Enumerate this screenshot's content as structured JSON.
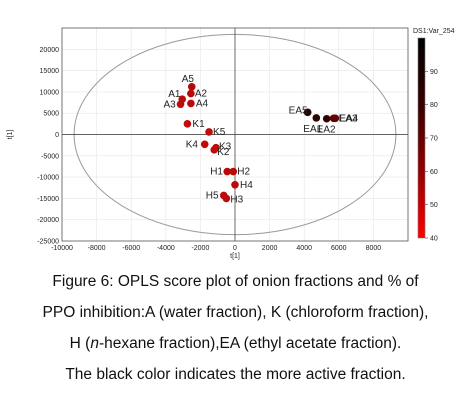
{
  "chart_data": {
    "type": "scatter",
    "title": "",
    "xlabel": "t[1]",
    "ylabel": "t[1]",
    "xlim": [
      -10000,
      10000
    ],
    "ylim": [
      -25000,
      25000
    ],
    "x_ticks": [
      "-10000",
      "-8000",
      "-6000",
      "-4000",
      "-2000",
      "0",
      "2000",
      "4000",
      "6000",
      "8000"
    ],
    "y_ticks": [
      "20000",
      "15000",
      "10000",
      "5000",
      "0",
      "-5000",
      "-10000",
      "-15000",
      "-20000",
      "-25000"
    ],
    "grid": true,
    "confidence_ellipse": true,
    "colorbar": {
      "title": "DS1:Var_254",
      "min": 40,
      "max": 100,
      "ticks": [
        "90",
        "80",
        "70",
        "60",
        "50",
        "40"
      ],
      "low_color": "#ff0000",
      "high_color": "#000000"
    },
    "points": [
      {
        "label": "A5",
        "x": -2500,
        "y": 11200,
        "value": 62
      },
      {
        "label": "A1",
        "x": -3050,
        "y": 8300,
        "value": 58
      },
      {
        "label": "A2",
        "x": -2550,
        "y": 9600,
        "value": 60
      },
      {
        "label": "A3",
        "x": -3150,
        "y": 7100,
        "value": 57
      },
      {
        "label": "A4",
        "x": -2550,
        "y": 7300,
        "value": 58
      },
      {
        "label": "K1",
        "x": -2750,
        "y": 2500,
        "value": 56
      },
      {
        "label": "K5",
        "x": -1500,
        "y": 600,
        "value": 56
      },
      {
        "label": "K4",
        "x": -1750,
        "y": -2300,
        "value": 57
      },
      {
        "label": "K2",
        "x": -1200,
        "y": -3600,
        "value": 57
      },
      {
        "label": "K3",
        "x": -1100,
        "y": -3100,
        "value": 56
      },
      {
        "label": "H1",
        "x": -450,
        "y": -8700,
        "value": 60
      },
      {
        "label": "H2",
        "x": -100,
        "y": -8700,
        "value": 60
      },
      {
        "label": "H4",
        "x": 0,
        "y": -11800,
        "value": 60
      },
      {
        "label": "H5",
        "x": -650,
        "y": -14300,
        "value": 58
      },
      {
        "label": "H3",
        "x": -500,
        "y": -15000,
        "value": 58
      },
      {
        "label": "EA5",
        "x": 4200,
        "y": 5200,
        "value": 96
      },
      {
        "label": "EA1",
        "x": 4700,
        "y": 3900,
        "value": 95
      },
      {
        "label": "EA2",
        "x": 5300,
        "y": 3700,
        "value": 94
      },
      {
        "label": "EA3",
        "x": 5700,
        "y": 3800,
        "value": 85
      },
      {
        "label": "EA4",
        "x": 5800,
        "y": 3800,
        "value": 85
      }
    ]
  },
  "caption": {
    "line1": "Figure 6: OPLS score plot of onion fractions and % of",
    "line2": "PPO inhibition:A (water fraction), K (chloroform fraction),",
    "line3_pre": "H (",
    "line3_italic": "n",
    "line3_post": "-hexane fraction),EA (ethyl acetate fraction).",
    "line4": "The black color indicates the more active fraction."
  }
}
